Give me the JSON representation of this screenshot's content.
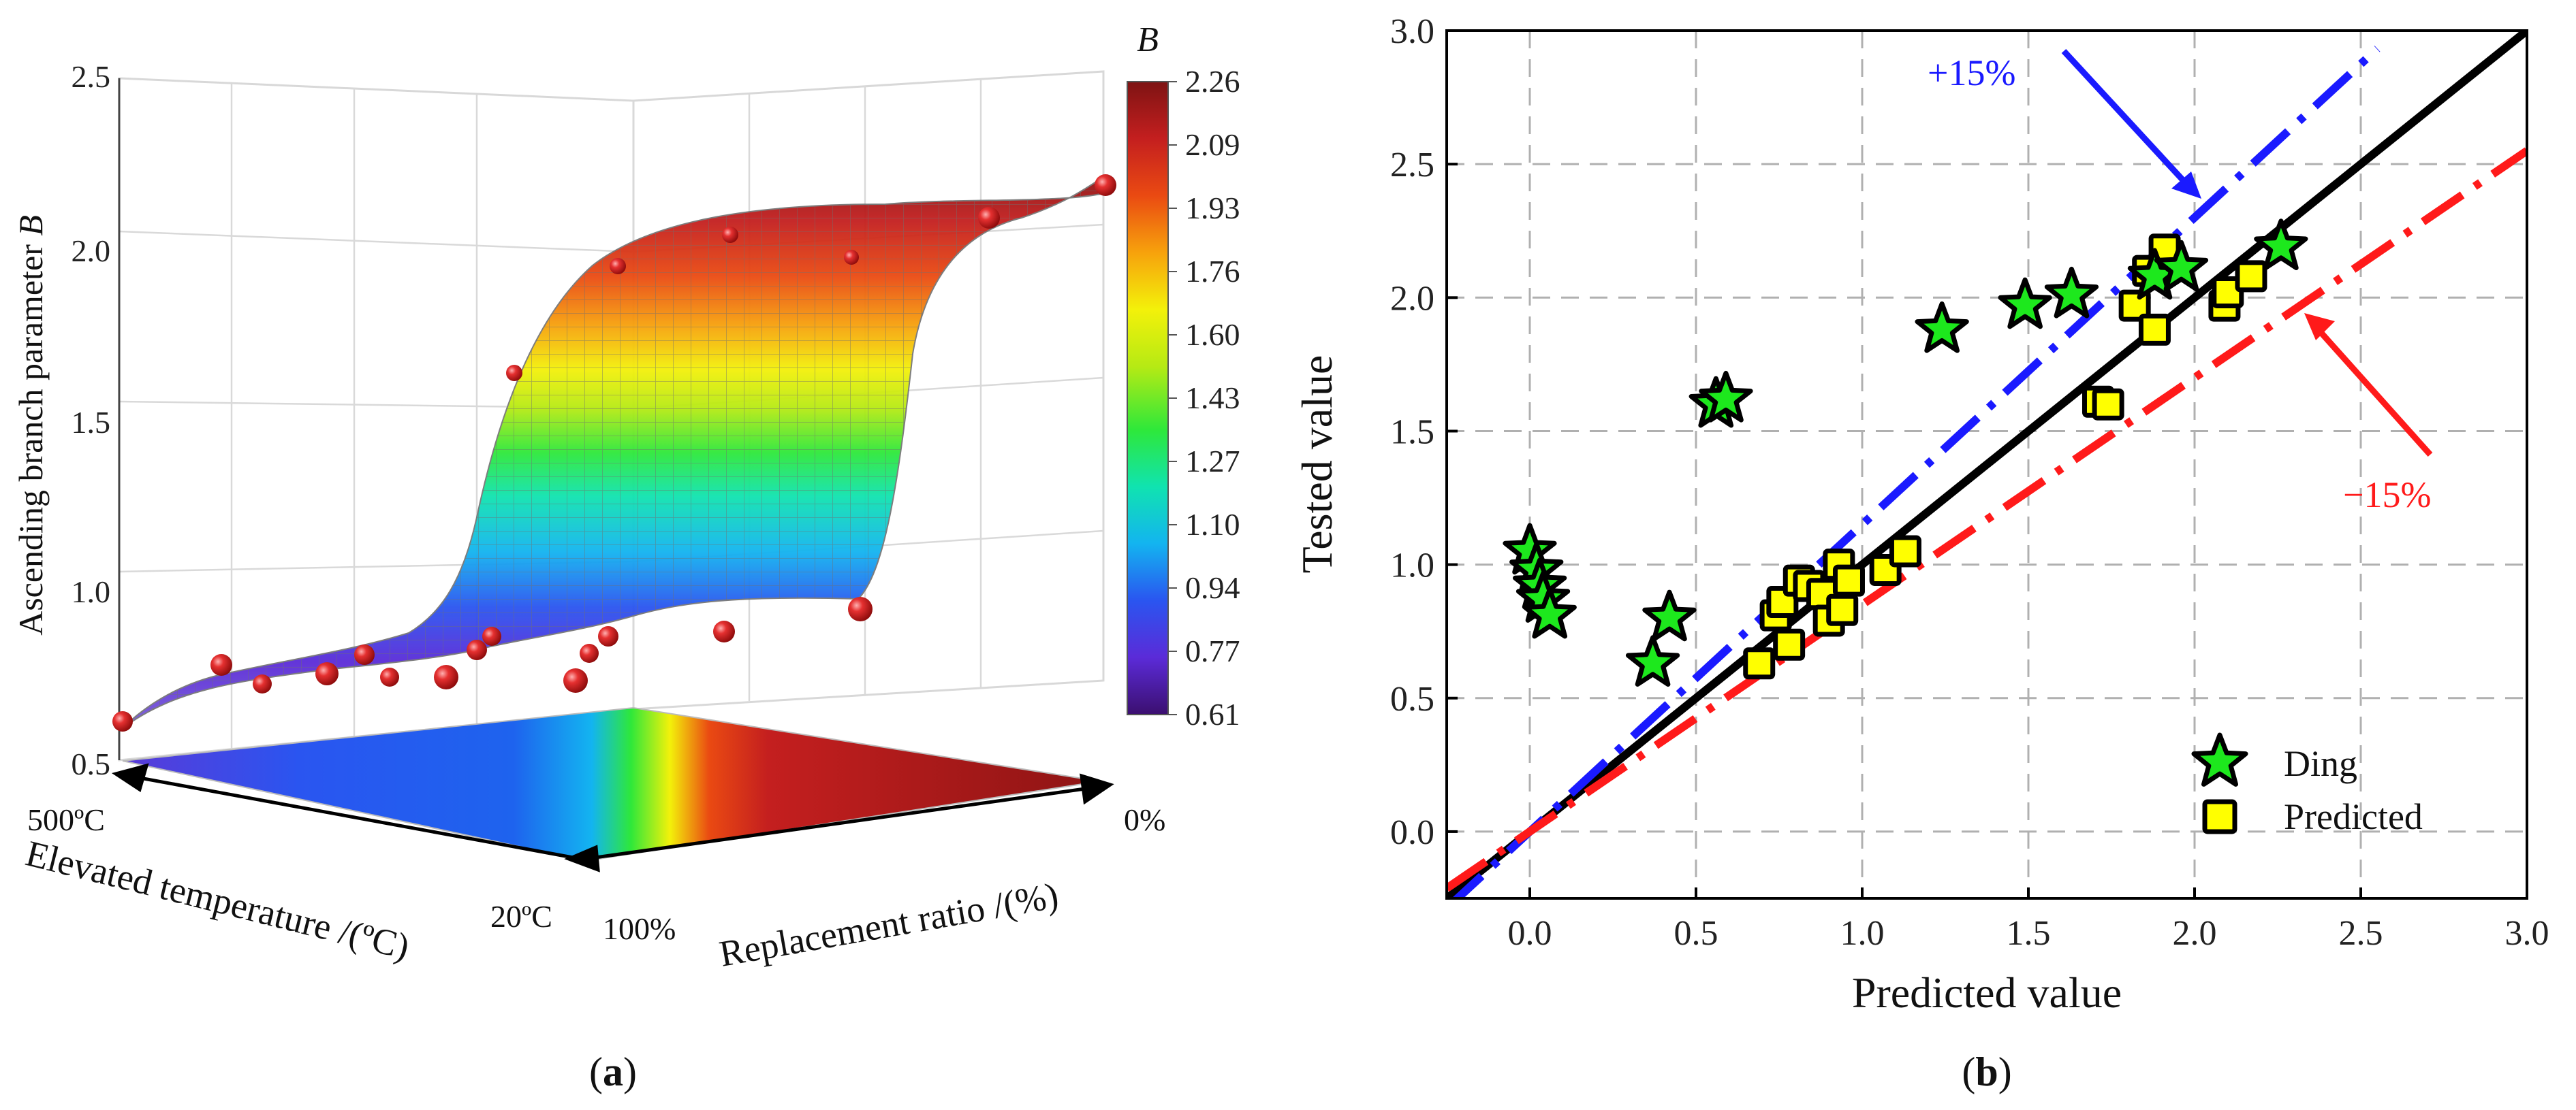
{
  "panel_a": {
    "label": "(a)",
    "label_letter": "a",
    "zlabel": "Ascending branch parameter B",
    "zlabel_main": "Ascending branch parameter ",
    "zlabel_var": "B",
    "xlabel": "Elevated temperature /(ºC)",
    "ylabel": "Replacement ratio /(%)",
    "temp_ticks": [
      "500ºC",
      "20ºC"
    ],
    "ratio_ticks": [
      "0%",
      "100%"
    ],
    "z_ticks": [
      "0.5",
      "1.0",
      "1.5",
      "2.0",
      "2.5"
    ],
    "colorbar_title": "B",
    "colorbar_ticks": [
      "2.26",
      "2.09",
      "1.93",
      "1.76",
      "1.60",
      "1.43",
      "1.27",
      "1.10",
      "0.94",
      "0.77",
      "0.61"
    ],
    "colormap": [
      "#3b0f6f",
      "#5b2bd8",
      "#2a55f0",
      "#13b4f0",
      "#10e3b0",
      "#2ee83a",
      "#b6ea14",
      "#f3f10a",
      "#f7a20c",
      "#ea4a12",
      "#c41f1f",
      "#7e1313"
    ]
  },
  "panel_b": {
    "label": "(b)",
    "label_letter": "b",
    "annotation_plus": "+15%",
    "annotation_minus": "−15%",
    "colors": {
      "plus": "#1a1aff",
      "minus": "#ff1a1a",
      "ideal": "#000000",
      "star": "#1de81d",
      "square": "#ffff00"
    }
  },
  "chart_data": [
    {
      "type": "surface3d",
      "title": "",
      "x_label": "Elevated temperature /(ºC)",
      "x_range": [
        20,
        500
      ],
      "y_label": "Replacement ratio /(%)",
      "y_range": [
        0,
        100
      ],
      "z_label": "Ascending branch parameter B",
      "z_range": [
        0.5,
        2.5
      ],
      "colorbar_range": [
        0.61,
        2.26
      ],
      "description_points_b": [
        0.63,
        0.79,
        0.76,
        0.75,
        0.76,
        0.77,
        0.77,
        0.82,
        0.85,
        0.87,
        0.95,
        1.64,
        1.95,
        2.04,
        1.97,
        2.09,
        2.18
      ]
    },
    {
      "type": "scatter",
      "xlabel": "Predicted value",
      "ylabel": "Tested value",
      "xlim": [
        -0.25,
        3.0
      ],
      "ylim": [
        -0.25,
        3.0
      ],
      "xticks": [
        "0.0",
        "0.5",
        "1.0",
        "1.5",
        "2.0",
        "2.5",
        "3.0"
      ],
      "yticks": [
        "0.0",
        "0.5",
        "1.0",
        "1.5",
        "2.0",
        "2.5",
        "3.0"
      ],
      "grid": true,
      "legend_position": "bottom-right",
      "lines": [
        {
          "name": "ideal",
          "slope": 1.0,
          "style": "solid"
        },
        {
          "name": "+15%",
          "slope": 1.15,
          "style": "dash-dot"
        },
        {
          "name": "−15%",
          "slope": 0.85,
          "style": "dash-dot"
        }
      ],
      "series": [
        {
          "name": "Ding",
          "marker": "star",
          "x": [
            0.0,
            0.02,
            0.03,
            0.04,
            0.06,
            0.37,
            0.42,
            0.56,
            0.59,
            1.24,
            1.49,
            1.63,
            1.88,
            1.96,
            2.26
          ],
          "y": [
            1.05,
            0.98,
            0.92,
            0.87,
            0.81,
            0.63,
            0.8,
            1.6,
            1.62,
            1.88,
            1.97,
            2.01,
            2.08,
            2.11,
            2.19
          ]
        },
        {
          "name": "Predicted",
          "marker": "square",
          "x": [
            0.69,
            0.74,
            0.76,
            0.78,
            0.81,
            0.84,
            0.88,
            0.9,
            0.93,
            0.94,
            0.96,
            1.07,
            1.13,
            1.71,
            1.74,
            1.82,
            1.86,
            1.88,
            1.91,
            2.09,
            2.1,
            2.17
          ],
          "y": [
            0.63,
            0.81,
            0.86,
            0.7,
            0.94,
            0.92,
            0.89,
            0.79,
            1.0,
            0.83,
            0.94,
            0.98,
            1.05,
            1.61,
            1.6,
            1.97,
            2.1,
            1.88,
            2.18,
            1.97,
            2.02,
            2.08
          ]
        }
      ]
    }
  ]
}
